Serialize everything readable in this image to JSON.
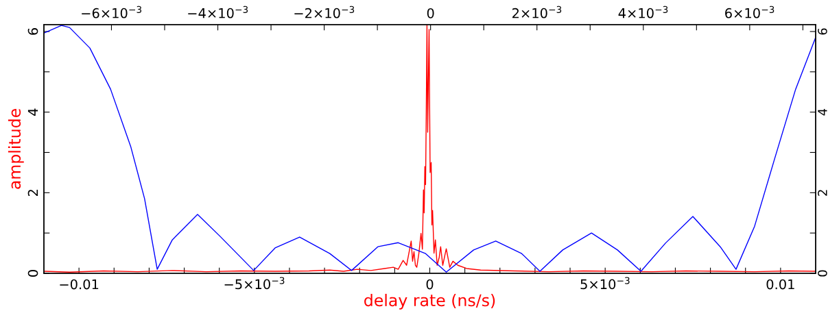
{
  "chart_data": {
    "type": "line",
    "xlabel": "delay rate (ns/s)",
    "ylabel": "amplitude",
    "xlim": [
      -0.011,
      0.011
    ],
    "xticks": [
      {
        "value": -0.01,
        "label": "−0.01"
      },
      {
        "value": -0.009,
        "label": null
      },
      {
        "value": -0.008,
        "label": null
      },
      {
        "value": -0.007,
        "label": null
      },
      {
        "value": -0.006,
        "label": null
      },
      {
        "value": -0.005,
        "label": "−5×10$^{−3}$"
      },
      {
        "value": -0.004,
        "label": null
      },
      {
        "value": -0.003,
        "label": null
      },
      {
        "value": -0.002,
        "label": null
      },
      {
        "value": -0.001,
        "label": null
      },
      0,
      {
        "value": 0.001,
        "label": null
      },
      {
        "value": 0.002,
        "label": null
      },
      {
        "value": 0.003,
        "label": null
      },
      {
        "value": 0.004,
        "label": null
      },
      {
        "value": 0.005,
        "label": "5×10$^{−3}$"
      },
      {
        "value": 0.006,
        "label": null
      },
      {
        "value": 0.007,
        "label": null
      },
      {
        "value": 0.008,
        "label": null
      },
      {
        "value": 0.009,
        "label": null
      },
      {
        "value": 0.01,
        "label": "0.01"
      }
    ],
    "x2lim": [
      -0.00727,
      0.00724
    ],
    "x2ticks": [
      {
        "value": -0.006,
        "label": "−6×10$^{−3}$"
      },
      {
        "value": -0.005,
        "label": null
      },
      {
        "value": -0.004,
        "label": "−4×10$^{−3}$"
      },
      {
        "value": -0.003,
        "label": null
      },
      {
        "value": -0.002,
        "label": "−2×10$^{−3}$"
      },
      {
        "value": -0.001,
        "label": null
      },
      0,
      {
        "value": 0.001,
        "label": null
      },
      {
        "value": 0.002,
        "label": "2×10$^{−3}$"
      },
      {
        "value": 0.003,
        "label": null
      },
      {
        "value": 0.004,
        "label": "4×10$^{−3}$"
      },
      {
        "value": 0.005,
        "label": null
      },
      {
        "value": 0.006,
        "label": "6×10$^{−3}$"
      },
      {
        "value": 0.007,
        "label": null
      }
    ],
    "ylim": [
      0,
      6.17
    ],
    "yticks": [
      0,
      {
        "value": 1,
        "label": null
      },
      2,
      {
        "value": 3,
        "label": null
      },
      4,
      {
        "value": 5,
        "label": null
      },
      6
    ],
    "y2lim": [
      0,
      6.17
    ],
    "y2ticks": [
      0,
      {
        "value": 1,
        "label": null
      },
      2,
      {
        "value": 3,
        "label": null
      },
      4,
      {
        "value": 5,
        "label": null
      },
      6
    ],
    "grid": false,
    "legend": false,
    "marker": "none",
    "line_style": "solid",
    "series": [
      {
        "color": "#ff0000",
        "x": [
          -0.01098,
          -0.01027,
          -0.0093,
          -0.00832,
          -0.00734,
          -0.00637,
          -0.00539,
          -0.00441,
          -0.00344,
          -0.00285,
          -0.00246,
          -0.00207,
          -0.00168,
          -0.00129,
          -0.00104,
          -0.0009,
          -0.00076,
          -0.00066,
          -0.00053,
          -0.00049,
          -0.00045,
          -0.00041,
          -0.00037,
          -0.00031,
          -0.00025,
          -0.00021,
          -0.00018,
          -0.00016,
          -0.00014,
          -0.00012,
          -0.0001,
          -8e-05,
          -6e-05,
          -2e-05,
          1e-05,
          4e-05,
          6e-05,
          8e-05,
          0.00012,
          0.00016,
          0.00021,
          0.00027,
          0.00031,
          0.00037,
          0.00047,
          0.00057,
          0.00066,
          0.0008,
          0.00105,
          0.00145,
          0.00242,
          0.0034,
          0.00438,
          0.00535,
          0.00633,
          0.0073,
          0.00828,
          0.00926,
          0.01023,
          0.01099
        ],
        "values": [
          0.05,
          0.03,
          0.06,
          0.04,
          0.07,
          0.04,
          0.06,
          0.05,
          0.06,
          0.08,
          0.05,
          0.1,
          0.07,
          0.12,
          0.15,
          0.1,
          0.32,
          0.2,
          0.8,
          0.3,
          0.54,
          0.2,
          0.15,
          0.5,
          0.99,
          0.6,
          2.07,
          1.5,
          2.65,
          2.2,
          4.01,
          6.16,
          3.5,
          6.05,
          2.5,
          2.75,
          1.2,
          1.56,
          0.5,
          0.83,
          0.2,
          0.4,
          0.66,
          0.2,
          0.61,
          0.15,
          0.3,
          0.2,
          0.12,
          0.08,
          0.06,
          0.04,
          0.06,
          0.05,
          0.04,
          0.06,
          0.05,
          0.04,
          0.06,
          0.05
        ]
      },
      {
        "color": "#0000ff",
        "x": [
          -0.01098,
          -0.0105,
          -0.01027,
          -0.00969,
          -0.0091,
          -0.00852,
          -0.00813,
          -0.00777,
          -0.00734,
          -0.00662,
          -0.00598,
          -0.00502,
          -0.00441,
          -0.00371,
          -0.00285,
          -0.00223,
          -0.00148,
          -0.0009,
          -0.00012,
          0.00047,
          0.00125,
          0.00188,
          0.00262,
          0.00314,
          0.00379,
          0.00461,
          0.00535,
          0.00602,
          0.00672,
          0.0075,
          0.00828,
          0.00873,
          0.00926,
          0.00984,
          0.01043,
          0.01099
        ],
        "values": [
          5.97,
          6.15,
          6.1,
          5.59,
          4.57,
          3.13,
          1.85,
          0.1,
          0.83,
          1.46,
          0.92,
          0.07,
          0.63,
          0.9,
          0.49,
          0.07,
          0.66,
          0.76,
          0.49,
          0.03,
          0.58,
          0.8,
          0.49,
          0.05,
          0.58,
          1.0,
          0.58,
          0.05,
          0.75,
          1.41,
          0.66,
          0.1,
          1.17,
          2.87,
          4.57,
          5.83
        ]
      }
    ]
  }
}
